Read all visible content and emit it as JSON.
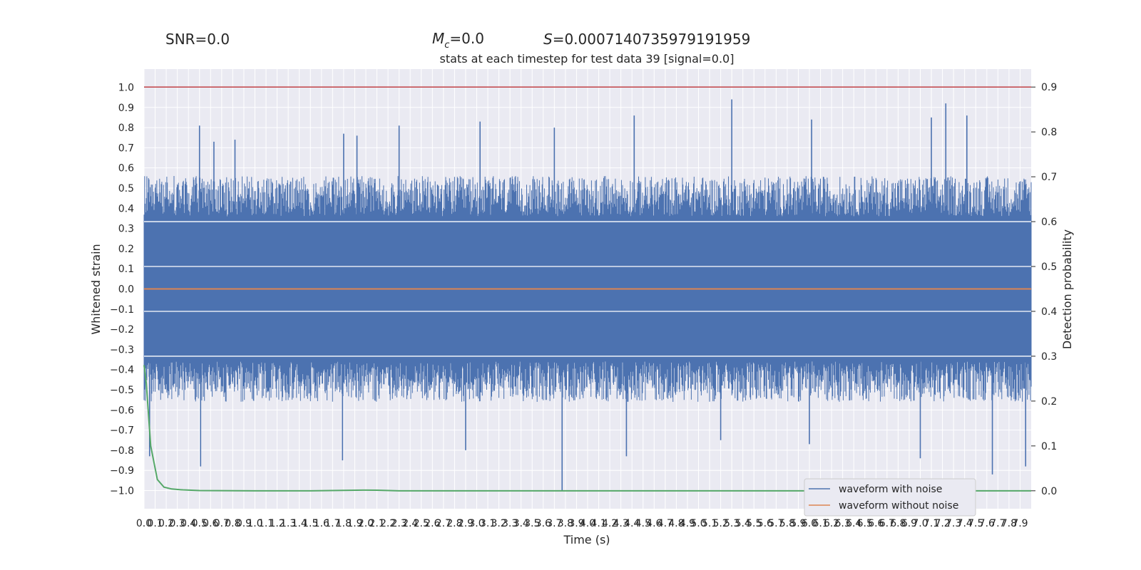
{
  "chart_data": {
    "type": "line",
    "header": {
      "snr": "SNR=0.0",
      "mc_symbol": "M",
      "mc_sub": "c",
      "mc_value": "=0.0",
      "s_symbol": "S",
      "s_value": "=0.0007140735979191959"
    },
    "title": "stats at each timestep for test data 39 [signal=0.0]",
    "xlabel": "Time (s)",
    "ylabel_left": "Whitened strain",
    "ylabel_right": "Detection probability",
    "xlim": [
      0,
      8.0
    ],
    "ylim_left": [
      -1.09,
      1.09
    ],
    "ylim_right": [
      -0.04,
      0.94
    ],
    "x_ticks": [
      "0.0",
      "0.1",
      "0.2",
      "0.3",
      "0.4",
      "0.5",
      "0.6",
      "0.7",
      "0.8",
      "0.9",
      "1.0",
      "1.1",
      "1.2",
      "1.3",
      "1.4",
      "1.5",
      "1.6",
      "1.7",
      "1.8",
      "1.9",
      "2.0",
      "2.1",
      "2.2",
      "2.3",
      "2.4",
      "2.5",
      "2.6",
      "2.7",
      "2.8",
      "2.9",
      "3.0",
      "3.1",
      "3.2",
      "3.3",
      "3.4",
      "3.5",
      "3.6",
      "3.7",
      "3.8",
      "3.9",
      "4.0",
      "4.1",
      "4.2",
      "4.3",
      "4.4",
      "4.5",
      "4.6",
      "4.7",
      "4.8",
      "4.9",
      "5.0",
      "5.1",
      "5.2",
      "5.3",
      "5.4",
      "5.5",
      "5.6",
      "5.7",
      "5.8",
      "5.9",
      "6.0",
      "6.1",
      "6.2",
      "6.3",
      "6.4",
      "6.5",
      "6.6",
      "6.7",
      "6.8",
      "6.9",
      "7.0",
      "7.1",
      "7.2",
      "7.3",
      "7.4",
      "7.5",
      "7.6",
      "7.7",
      "7.8",
      "7.9"
    ],
    "y_ticks_left": [
      "1.0",
      "0.9",
      "0.8",
      "0.7",
      "0.6",
      "0.5",
      "0.4",
      "0.3",
      "0.2",
      "0.1",
      "0.0",
      "-0.1",
      "-0.2",
      "-0.3",
      "-0.4",
      "-0.5",
      "-0.6",
      "-0.7",
      "-0.8",
      "-0.9",
      "-1.0"
    ],
    "y_ticks_right": [
      "0.9",
      "0.8",
      "0.7",
      "0.6",
      "0.5",
      "0.4",
      "0.3",
      "0.2",
      "0.1",
      "0.0"
    ],
    "grid": true,
    "legend_position": "bottom-right",
    "series": [
      {
        "name": "waveform with noise",
        "color": "#4c72b0",
        "axis": "left",
        "kind": "dense-noise",
        "typical_range": [
          -0.48,
          0.48
        ],
        "peaks": [
          {
            "x": 0.5,
            "y": 0.81
          },
          {
            "x": 0.63,
            "y": 0.73
          },
          {
            "x": 0.82,
            "y": 0.74
          },
          {
            "x": 1.8,
            "y": 0.77
          },
          {
            "x": 1.92,
            "y": 0.76
          },
          {
            "x": 2.3,
            "y": 0.81
          },
          {
            "x": 3.03,
            "y": 0.83
          },
          {
            "x": 3.7,
            "y": 0.8
          },
          {
            "x": 4.42,
            "y": 0.86
          },
          {
            "x": 5.3,
            "y": 0.94
          },
          {
            "x": 6.02,
            "y": 0.84
          },
          {
            "x": 7.1,
            "y": 0.85
          },
          {
            "x": 7.23,
            "y": 0.92
          },
          {
            "x": 7.42,
            "y": 0.86
          }
        ],
        "troughs": [
          {
            "x": 0.05,
            "y": -0.83
          },
          {
            "x": 0.51,
            "y": -0.88
          },
          {
            "x": 1.79,
            "y": -0.85
          },
          {
            "x": 2.9,
            "y": -0.8
          },
          {
            "x": 3.77,
            "y": -1.0
          },
          {
            "x": 4.35,
            "y": -0.83
          },
          {
            "x": 5.2,
            "y": -0.75
          },
          {
            "x": 6.0,
            "y": -0.77
          },
          {
            "x": 7.0,
            "y": -0.84
          },
          {
            "x": 7.65,
            "y": -0.92
          },
          {
            "x": 7.95,
            "y": -0.88
          }
        ]
      },
      {
        "name": "waveform without noise",
        "color": "#dd8452",
        "axis": "left",
        "x": [
          0.0,
          8.0
        ],
        "y": [
          0.0,
          0.0
        ]
      },
      {
        "name": "",
        "color": "#55a868",
        "axis": "right",
        "x": [
          0.0,
          0.02,
          0.06,
          0.12,
          0.18,
          0.25,
          0.35,
          0.5,
          1.0,
          1.5,
          2.0,
          2.1,
          2.3,
          3.0,
          4.0,
          5.0,
          6.0,
          7.0,
          8.0
        ],
        "y": [
          0.28,
          0.24,
          0.1,
          0.025,
          0.008,
          0.004,
          0.002,
          0.0005,
          0.0,
          0.0,
          0.0015,
          0.0012,
          0.0,
          0.0,
          0.0,
          0.0,
          0.0,
          0.0,
          0.0
        ]
      }
    ],
    "threshold": {
      "axis": "right",
      "y": 0.9,
      "color": "#c44e52"
    },
    "colors": {
      "plot_bg": "#eaeaf2",
      "grid": "#ffffff",
      "text": "#262626"
    }
  }
}
